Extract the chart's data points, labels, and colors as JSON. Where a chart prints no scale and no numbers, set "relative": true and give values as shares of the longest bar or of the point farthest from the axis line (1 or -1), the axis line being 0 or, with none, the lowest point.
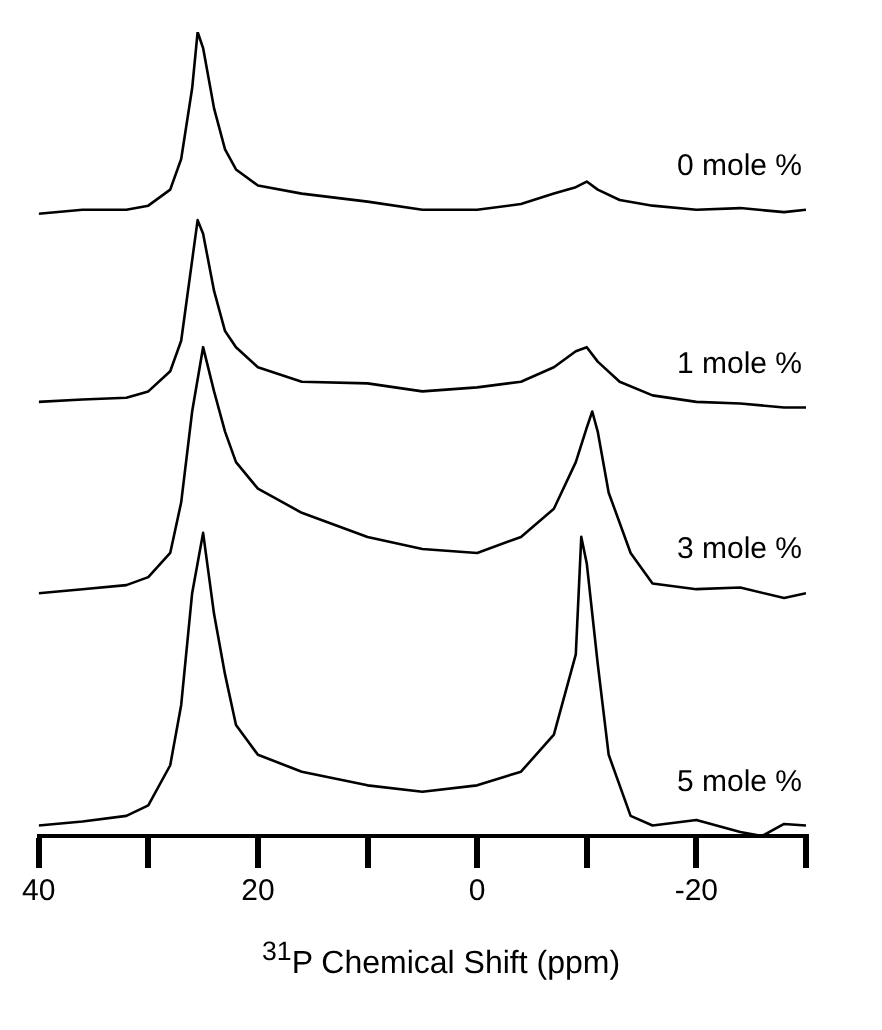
{
  "chart_data": {
    "type": "line",
    "relative": true,
    "xlabel": "$^{31}$P Chemical Shift (ppm)",
    "xlim": [
      40,
      -30
    ],
    "xticks": [
      40,
      {
        "value": 30,
        "label": null
      },
      20,
      {
        "value": 10,
        "label": null
      },
      0,
      {
        "value": -10,
        "label": null
      },
      -20,
      {
        "value": -30,
        "label": null
      }
    ],
    "grid": false,
    "legend": false,
    "marker": "none",
    "line_style": "solid",
    "series": [
      {
        "name": "0 mole %",
        "color": "#000000",
        "x": [
          40,
          36,
          32,
          30,
          28,
          27,
          26,
          25.5,
          25,
          24,
          23,
          22,
          20,
          16,
          10,
          5,
          0,
          -4,
          -7,
          -9,
          -10,
          -11,
          -13,
          -16,
          -20,
          -24,
          -28,
          -30
        ],
        "values": [
          0.774,
          0.779,
          0.779,
          0.784,
          0.804,
          0.842,
          0.93,
          1.0,
          0.98,
          0.905,
          0.854,
          0.829,
          0.809,
          0.799,
          0.789,
          0.779,
          0.779,
          0.786,
          0.799,
          0.807,
          0.814,
          0.804,
          0.791,
          0.784,
          0.779,
          0.781,
          0.776,
          0.779
        ]
      },
      {
        "name": "1 mole %",
        "color": "#000000",
        "x": [
          40,
          36,
          32,
          30,
          28,
          27,
          26,
          25.5,
          25,
          24,
          23,
          22,
          20,
          16,
          10,
          5,
          0,
          -4,
          -7,
          -9,
          -10,
          -11,
          -13,
          -16,
          -20,
          -24,
          -28,
          -30
        ],
        "values": [
          0.54,
          0.543,
          0.545,
          0.553,
          0.578,
          0.616,
          0.716,
          0.766,
          0.749,
          0.678,
          0.628,
          0.608,
          0.583,
          0.565,
          0.563,
          0.553,
          0.558,
          0.565,
          0.583,
          0.603,
          0.608,
          0.59,
          0.565,
          0.548,
          0.54,
          0.538,
          0.533,
          0.533
        ]
      },
      {
        "name": "3 mole %",
        "color": "#000000",
        "x": [
          40,
          36,
          32,
          30,
          28,
          27,
          26,
          25,
          24,
          23,
          22,
          20,
          16,
          10,
          5,
          0,
          -4,
          -7,
          -9,
          -10,
          -10.5,
          -11,
          -12,
          -14,
          -16,
          -20,
          -24,
          -28,
          -30
        ],
        "values": [
          0.302,
          0.307,
          0.312,
          0.322,
          0.352,
          0.415,
          0.528,
          0.608,
          0.553,
          0.503,
          0.465,
          0.432,
          0.402,
          0.372,
          0.357,
          0.352,
          0.372,
          0.407,
          0.465,
          0.508,
          0.528,
          0.503,
          0.427,
          0.352,
          0.314,
          0.307,
          0.309,
          0.296,
          0.302
        ]
      },
      {
        "name": "5 mole %",
        "color": "#000000",
        "x": [
          40,
          36,
          32,
          30,
          28,
          27,
          26,
          25,
          24,
          23,
          22,
          20,
          16,
          10,
          5,
          0,
          -4,
          -7,
          -9,
          -9.5,
          -10,
          -11,
          -12,
          -14,
          -16,
          -20,
          -24,
          -26,
          -28,
          -30
        ],
        "values": [
          0.013,
          0.018,
          0.025,
          0.038,
          0.088,
          0.163,
          0.302,
          0.377,
          0.276,
          0.201,
          0.138,
          0.101,
          0.08,
          0.063,
          0.055,
          0.063,
          0.08,
          0.126,
          0.226,
          0.372,
          0.339,
          0.214,
          0.101,
          0.025,
          0.013,
          0.02,
          0.005,
          0.0,
          0.015,
          0.013
        ]
      }
    ]
  }
}
